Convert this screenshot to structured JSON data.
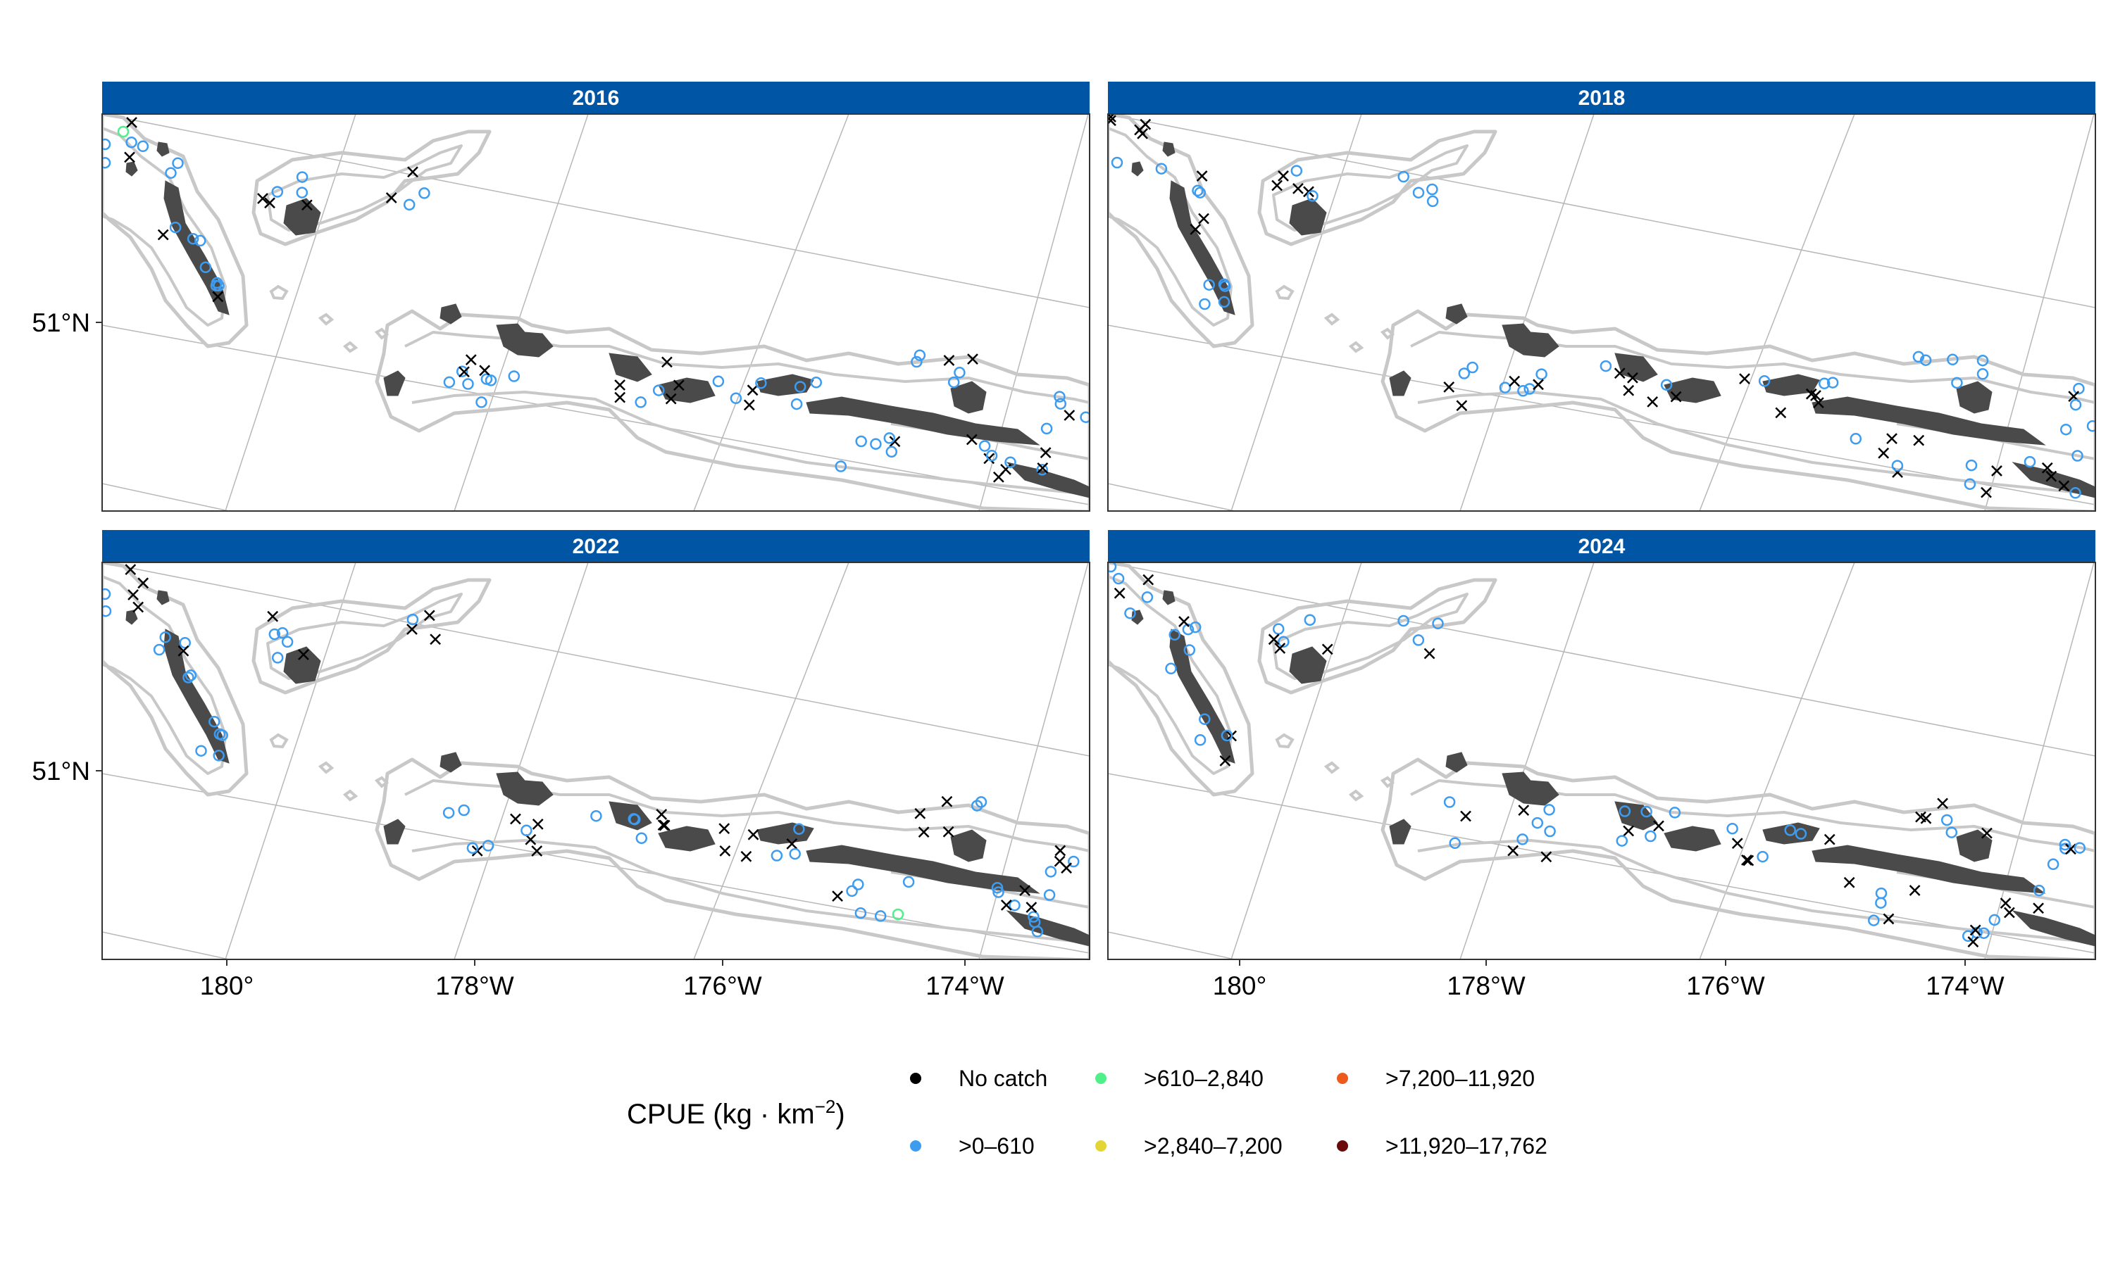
{
  "colors": {
    "strip": "#0055A4",
    "land": "#4a4a4a",
    "contour": "#c8c8c8",
    "graticule": "#b8b8b8",
    "no_catch": "#000000",
    "cpue_1": "#3d9cf0",
    "cpue_2": "#4ff08a",
    "cpue_3": "#e3d634",
    "cpue_4": "#ee5a1c",
    "cpue_5": "#6a0a0a"
  },
  "panels": [
    {
      "title": "2016"
    },
    {
      "title": "2018"
    },
    {
      "title": "2022"
    },
    {
      "title": "2024"
    }
  ],
  "axes": {
    "y_tick_label": "51°N",
    "x_tick_labels": [
      "180°",
      "178°W",
      "176°W",
      "174°W"
    ]
  },
  "legend": {
    "title_main": "CPUE (kg · km",
    "title_sup": "−2",
    "title_close": ")",
    "items": [
      {
        "label": "No catch",
        "color_key": "no_catch"
      },
      {
        "label": ">0–610",
        "color_key": "cpue_1"
      },
      {
        "label": ">610–2,840",
        "color_key": "cpue_2"
      },
      {
        "label": ">2,840–7,200",
        "color_key": "cpue_3"
      },
      {
        "label": ">7,200–11,920",
        "color_key": "cpue_4"
      },
      {
        "label": ">11,920–17,762",
        "color_key": "cpue_5"
      }
    ]
  },
  "chart_data": {
    "type": "scatter",
    "facets": [
      "2016",
      "2018",
      "2022",
      "2024"
    ],
    "x_axis_ticks": [
      "180°",
      "178°W",
      "176°W",
      "174°W"
    ],
    "y_axis_ticks": [
      "51°N"
    ],
    "legend_title": "CPUE (kg·km−2)",
    "categories": [
      "No catch",
      ">0–610",
      ">610–2,840",
      ">2,840–7,200",
      ">7,200–11,920",
      ">11,920–17,762"
    ],
    "legend_position": "bottom",
    "grid": true
  }
}
